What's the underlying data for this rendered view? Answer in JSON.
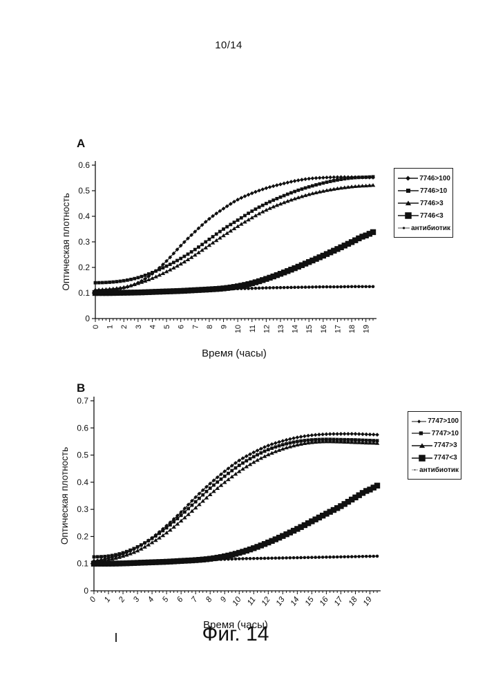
{
  "page": {
    "number": "10/14",
    "caption": "Фиг. 14"
  },
  "colors": {
    "ink": "#101010",
    "paper": "#ffffff"
  },
  "chart_data": [
    {
      "id": "a",
      "type": "line",
      "panel_label": "A",
      "title": "",
      "xlabel": "Время (часы)",
      "ylabel": "Оптическая плотность",
      "xlim": [
        0,
        19.5
      ],
      "ylim": [
        0,
        0.6
      ],
      "xticks": [
        0,
        1,
        2,
        3,
        4,
        5,
        6,
        7,
        8,
        9,
        10,
        11,
        12,
        13,
        14,
        15,
        16,
        17,
        18,
        19
      ],
      "yticks": [
        0,
        0.1,
        0.2,
        0.3,
        0.4,
        0.5,
        0.6
      ],
      "x_hours": [
        0,
        1,
        2,
        3,
        4,
        5,
        6,
        7,
        8,
        9,
        10,
        11,
        12,
        13,
        14,
        15,
        16,
        17,
        18,
        19
      ],
      "marker_step_hours": 0.25,
      "tick_label_style": "vertical",
      "legend_position": "right",
      "grid": false,
      "series": [
        {
          "name": "7746>100",
          "marker": "diamond",
          "values": [
            0.11,
            0.112,
            0.12,
            0.14,
            0.175,
            0.225,
            0.285,
            0.34,
            0.39,
            0.43,
            0.465,
            0.49,
            0.51,
            0.525,
            0.538,
            0.547,
            0.551,
            0.553,
            0.553,
            0.552
          ]
        },
        {
          "name": "7746>10",
          "marker": "square",
          "values": [
            0.14,
            0.142,
            0.148,
            0.16,
            0.18,
            0.205,
            0.235,
            0.27,
            0.31,
            0.35,
            0.385,
            0.42,
            0.45,
            0.475,
            0.497,
            0.515,
            0.53,
            0.542,
            0.55,
            0.553
          ]
        },
        {
          "name": "7746>3",
          "marker": "triangle",
          "values": [
            0.113,
            0.116,
            0.123,
            0.138,
            0.158,
            0.184,
            0.214,
            0.249,
            0.287,
            0.325,
            0.361,
            0.395,
            0.425,
            0.449,
            0.469,
            0.486,
            0.499,
            0.509,
            0.516,
            0.52
          ]
        },
        {
          "name": "7746<3",
          "marker": "big-square",
          "values": [
            0.1,
            0.1,
            0.101,
            0.102,
            0.104,
            0.106,
            0.108,
            0.111,
            0.114,
            0.118,
            0.126,
            0.138,
            0.155,
            0.175,
            0.197,
            0.221,
            0.246,
            0.272,
            0.299,
            0.325
          ]
        },
        {
          "name": "антибиотик",
          "marker": "circle",
          "values": [
            0.1,
            0.101,
            0.103,
            0.105,
            0.107,
            0.109,
            0.111,
            0.112,
            0.114,
            0.115,
            0.117,
            0.118,
            0.12,
            0.121,
            0.122,
            0.123,
            0.124,
            0.124,
            0.125,
            0.125
          ]
        }
      ]
    },
    {
      "id": "b",
      "type": "line",
      "panel_label": "B",
      "title": "",
      "xlabel": "Время (часы)",
      "ylabel": "Оптическая плотность",
      "xlim": [
        0,
        19.5
      ],
      "ylim": [
        0,
        0.7
      ],
      "xticks": [
        0,
        1,
        2,
        3,
        4,
        5,
        6,
        7,
        8,
        9,
        10,
        11,
        12,
        13,
        14,
        15,
        16,
        17,
        18,
        19
      ],
      "yticks": [
        0,
        0.1,
        0.2,
        0.3,
        0.4,
        0.5,
        0.6,
        0.7
      ],
      "x_hours": [
        0,
        1,
        2,
        3,
        4,
        5,
        6,
        7,
        8,
        9,
        10,
        11,
        12,
        13,
        14,
        15,
        16,
        17,
        18,
        19
      ],
      "marker_step_hours": 0.25,
      "tick_label_style": "oblique",
      "legend_position": "right",
      "grid": false,
      "series": [
        {
          "name": "7747>100",
          "marker": "diamond",
          "values": [
            0.11,
            0.12,
            0.135,
            0.16,
            0.195,
            0.24,
            0.29,
            0.345,
            0.395,
            0.44,
            0.48,
            0.51,
            0.535,
            0.552,
            0.565,
            0.573,
            0.577,
            0.578,
            0.578,
            0.576
          ]
        },
        {
          "name": "7747>10",
          "marker": "square",
          "values": [
            0.125,
            0.128,
            0.14,
            0.162,
            0.193,
            0.232,
            0.278,
            0.328,
            0.378,
            0.422,
            0.462,
            0.494,
            0.52,
            0.538,
            0.55,
            0.556,
            0.558,
            0.557,
            0.556,
            0.554
          ]
        },
        {
          "name": "7747>3",
          "marker": "triangle",
          "values": [
            0.11,
            0.115,
            0.128,
            0.148,
            0.178,
            0.214,
            0.258,
            0.306,
            0.355,
            0.4,
            0.44,
            0.474,
            0.502,
            0.523,
            0.538,
            0.547,
            0.55,
            0.549,
            0.547,
            0.545
          ]
        },
        {
          "name": "7747<3",
          "marker": "big-square",
          "values": [
            0.1,
            0.1,
            0.101,
            0.103,
            0.105,
            0.107,
            0.11,
            0.113,
            0.118,
            0.127,
            0.14,
            0.157,
            0.178,
            0.202,
            0.228,
            0.256,
            0.284,
            0.312,
            0.344,
            0.373
          ]
        },
        {
          "name": "антибиотик",
          "marker": "circle",
          "values": [
            0.1,
            0.102,
            0.104,
            0.106,
            0.108,
            0.11,
            0.112,
            0.113,
            0.115,
            0.116,
            0.118,
            0.119,
            0.12,
            0.121,
            0.122,
            0.123,
            0.124,
            0.125,
            0.126,
            0.127
          ]
        }
      ]
    }
  ]
}
